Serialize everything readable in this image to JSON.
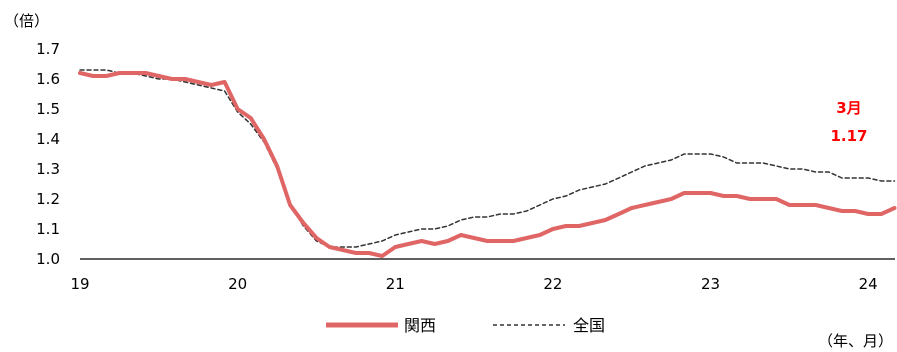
{
  "chart_data": {
    "type": "line",
    "ylabel": "（倍）",
    "xlabel": "（年、月）",
    "ylim": [
      1.0,
      1.7
    ],
    "y_ticks": [
      "1.0",
      "1.1",
      "1.2",
      "1.3",
      "1.4",
      "1.5",
      "1.6",
      "1.7"
    ],
    "x_tick_labels": [
      "19",
      "20",
      "21",
      "22",
      "23",
      "24"
    ],
    "xlim": [
      2019.0,
      2024.17
    ],
    "grid": false,
    "legend": "bottom",
    "annotation": {
      "line1": "3月",
      "line2": "1.17"
    },
    "series": [
      {
        "name": "関西",
        "color": "#e06666",
        "style": "solid",
        "x": [
          2019.0,
          2019.083,
          2019.167,
          2019.25,
          2019.333,
          2019.417,
          2019.5,
          2019.583,
          2019.667,
          2019.75,
          2019.833,
          2019.917,
          2020.0,
          2020.083,
          2020.167,
          2020.25,
          2020.333,
          2020.417,
          2020.5,
          2020.583,
          2020.667,
          2020.75,
          2020.833,
          2020.917,
          2021.0,
          2021.083,
          2021.167,
          2021.25,
          2021.333,
          2021.417,
          2021.5,
          2021.583,
          2021.667,
          2021.75,
          2021.833,
          2021.917,
          2022.0,
          2022.083,
          2022.167,
          2022.25,
          2022.333,
          2022.417,
          2022.5,
          2022.583,
          2022.667,
          2022.75,
          2022.833,
          2022.917,
          2023.0,
          2023.083,
          2023.167,
          2023.25,
          2023.333,
          2023.417,
          2023.5,
          2023.583,
          2023.667,
          2023.75,
          2023.833,
          2023.917,
          2024.0,
          2024.083,
          2024.167
        ],
        "values": [
          1.62,
          1.61,
          1.61,
          1.62,
          1.62,
          1.62,
          1.61,
          1.6,
          1.6,
          1.59,
          1.58,
          1.59,
          1.5,
          1.47,
          1.4,
          1.31,
          1.18,
          1.12,
          1.07,
          1.04,
          1.03,
          1.02,
          1.02,
          1.01,
          1.04,
          1.05,
          1.06,
          1.05,
          1.06,
          1.08,
          1.07,
          1.06,
          1.06,
          1.06,
          1.07,
          1.08,
          1.1,
          1.11,
          1.11,
          1.12,
          1.13,
          1.15,
          1.17,
          1.18,
          1.19,
          1.2,
          1.22,
          1.22,
          1.22,
          1.21,
          1.21,
          1.2,
          1.2,
          1.2,
          1.18,
          1.18,
          1.18,
          1.17,
          1.16,
          1.16,
          1.15,
          1.15,
          1.17
        ]
      },
      {
        "name": "全国",
        "color": "#333333",
        "style": "dashed",
        "x": [
          2019.0,
          2019.083,
          2019.167,
          2019.25,
          2019.333,
          2019.417,
          2019.5,
          2019.583,
          2019.667,
          2019.75,
          2019.833,
          2019.917,
          2020.0,
          2020.083,
          2020.167,
          2020.25,
          2020.333,
          2020.417,
          2020.5,
          2020.583,
          2020.667,
          2020.75,
          2020.833,
          2020.917,
          2021.0,
          2021.083,
          2021.167,
          2021.25,
          2021.333,
          2021.417,
          2021.5,
          2021.583,
          2021.667,
          2021.75,
          2021.833,
          2021.917,
          2022.0,
          2022.083,
          2022.167,
          2022.25,
          2022.333,
          2022.417,
          2022.5,
          2022.583,
          2022.667,
          2022.75,
          2022.833,
          2022.917,
          2023.0,
          2023.083,
          2023.167,
          2023.25,
          2023.333,
          2023.417,
          2023.5,
          2023.583,
          2023.667,
          2023.75,
          2023.833,
          2023.917,
          2024.0,
          2024.083,
          2024.167
        ],
        "values": [
          1.63,
          1.63,
          1.63,
          1.62,
          1.62,
          1.61,
          1.6,
          1.6,
          1.59,
          1.58,
          1.57,
          1.56,
          1.49,
          1.45,
          1.39,
          1.3,
          1.18,
          1.11,
          1.06,
          1.04,
          1.04,
          1.04,
          1.05,
          1.06,
          1.08,
          1.09,
          1.1,
          1.1,
          1.11,
          1.13,
          1.14,
          1.14,
          1.15,
          1.15,
          1.16,
          1.18,
          1.2,
          1.21,
          1.23,
          1.24,
          1.25,
          1.27,
          1.29,
          1.31,
          1.32,
          1.33,
          1.35,
          1.35,
          1.35,
          1.34,
          1.32,
          1.32,
          1.32,
          1.31,
          1.3,
          1.3,
          1.29,
          1.29,
          1.27,
          1.27,
          1.27,
          1.26,
          1.26
        ]
      }
    ]
  }
}
